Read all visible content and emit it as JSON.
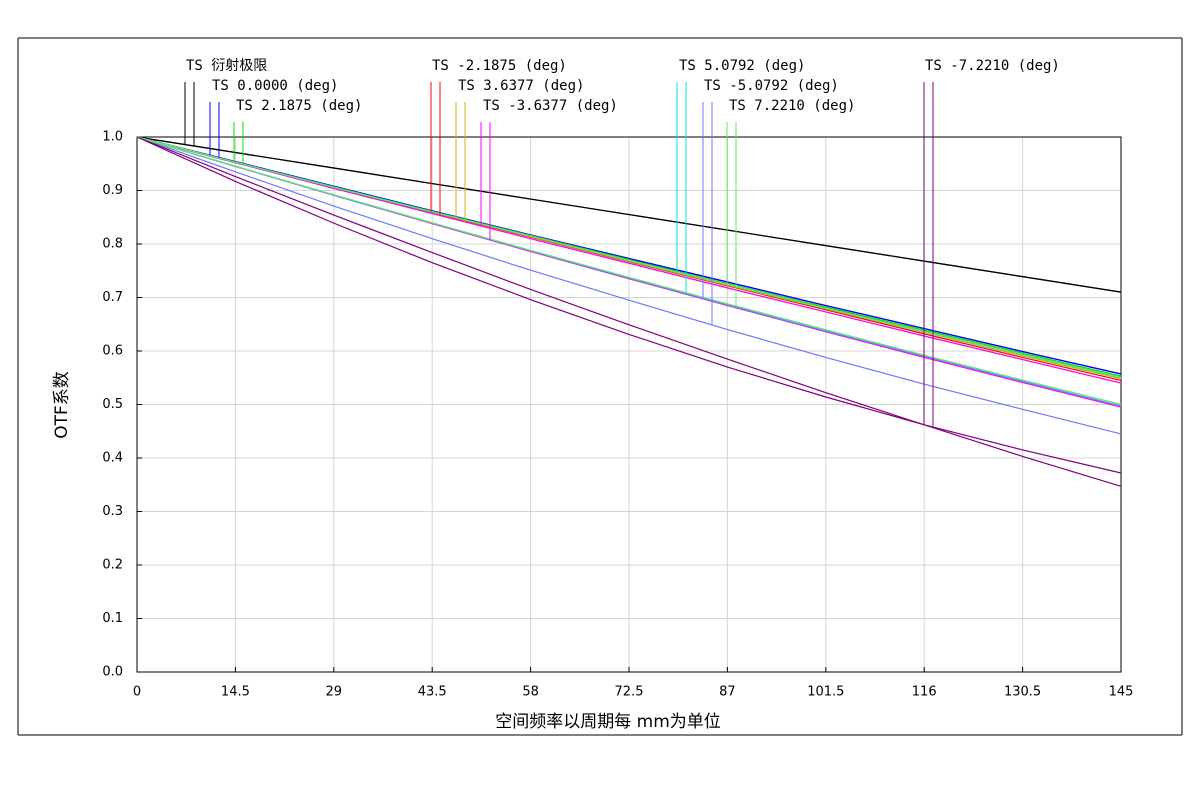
{
  "chart_data": {
    "type": "line",
    "x_label": "空间频率以周期每 mm为单位",
    "y_label": "OTF系数",
    "x": [
      0,
      14.5,
      29,
      43.5,
      58,
      72.5,
      87,
      101.5,
      116,
      130.5,
      145
    ],
    "xlim": [
      0,
      145
    ],
    "xticks": [
      0,
      14.5,
      29,
      43.5,
      58,
      72.5,
      87,
      101.5,
      116,
      130.5,
      145
    ],
    "ylim": [
      0,
      1
    ],
    "yticks": [
      {
        "value": 0,
        "label": "0.0"
      },
      0.1,
      0.2,
      0.3,
      0.4,
      0.5,
      0.6,
      0.7,
      0.8,
      0.9,
      {
        "value": 1,
        "label": "1.0"
      }
    ],
    "grid": true,
    "series": [
      {
        "name": "TS 衍射极限",
        "color": "#000000",
        "color_s": "#000000",
        "values": [
          1,
          0.971,
          0.942,
          0.913,
          0.884,
          0.855,
          0.826,
          0.797,
          0.768,
          0.739,
          0.71
        ],
        "values_s": [
          1,
          0.971,
          0.942,
          0.913,
          0.884,
          0.855,
          0.826,
          0.797,
          0.768,
          0.739,
          0.71
        ]
      },
      {
        "name": "TS 0.0000 (deg)",
        "color": "#0000ff",
        "color_s": "#0000ff",
        "values": [
          1,
          0.954,
          0.908,
          0.862,
          0.817,
          0.773,
          0.729,
          0.685,
          0.642,
          0.599,
          0.557
        ],
        "values_s": [
          1,
          0.954,
          0.908,
          0.862,
          0.817,
          0.773,
          0.729,
          0.685,
          0.642,
          0.599,
          0.557
        ]
      },
      {
        "name": "TS 2.1875 (deg)",
        "color": "#00e000",
        "color_s": "#00e000",
        "values": [
          1,
          0.953,
          0.907,
          0.861,
          0.816,
          0.771,
          0.726,
          0.682,
          0.639,
          0.596,
          0.553
        ],
        "values_s": [
          1,
          0.953,
          0.906,
          0.86,
          0.815,
          0.769,
          0.725,
          0.68,
          0.636,
          0.593,
          0.55
        ]
      },
      {
        "name": "TS -2.1875 (deg)",
        "color": "#ff0000",
        "color_s": "#ff0000",
        "values": [
          1,
          0.953,
          0.906,
          0.86,
          0.815,
          0.769,
          0.725,
          0.68,
          0.636,
          0.593,
          0.55
        ],
        "values_s": [
          1,
          0.952,
          0.905,
          0.859,
          0.813,
          0.767,
          0.722,
          0.677,
          0.632,
          0.588,
          0.545
        ]
      },
      {
        "name": "TS 3.6377 (deg)",
        "color": "#c8b400",
        "color_s": "#c8b400",
        "values": [
          1,
          0.953,
          0.906,
          0.86,
          0.814,
          0.768,
          0.723,
          0.679,
          0.635,
          0.591,
          0.548
        ],
        "values_s": [
          1,
          0.952,
          0.904,
          0.857,
          0.81,
          0.764,
          0.718,
          0.673,
          0.628,
          0.584,
          0.54
        ]
      },
      {
        "name": "TS -3.6377 (deg)",
        "color": "#ff00ff",
        "color_s": "#ff00ff",
        "values": [
          1,
          0.952,
          0.904,
          0.857,
          0.81,
          0.764,
          0.718,
          0.673,
          0.628,
          0.584,
          0.54
        ],
        "values_s": [
          1,
          0.945,
          0.891,
          0.838,
          0.786,
          0.735,
          0.685,
          0.636,
          0.588,
          0.541,
          0.495
        ]
      },
      {
        "name": "TS 5.0792 (deg)",
        "color": "#00e0e0",
        "color_s": "#00e0e0",
        "values": [
          1,
          0.953,
          0.906,
          0.86,
          0.815,
          0.769,
          0.725,
          0.68,
          0.636,
          0.593,
          0.55
        ],
        "values_s": [
          1,
          0.9455,
          0.892,
          0.8395,
          0.788,
          0.7375,
          0.688,
          0.6395,
          0.592,
          0.5455,
          0.5
        ]
      },
      {
        "name": "TS -5.0792 (deg)",
        "color": "#6e78ff",
        "color_s": "#6e78ff",
        "values": [
          1,
          0.945,
          0.891,
          0.839,
          0.787,
          0.736,
          0.686,
          0.637,
          0.59,
          0.543,
          0.497
        ],
        "values_s": [
          1,
          0.935,
          0.871,
          0.81,
          0.751,
          0.695,
          0.64,
          0.588,
          0.538,
          0.491,
          0.445
        ]
      },
      {
        "name": "TS 7.2210 (deg)",
        "color": "#64e664",
        "color_s": "#64e664",
        "values": [
          1,
          0.953,
          0.906,
          0.86,
          0.815,
          0.769,
          0.725,
          0.68,
          0.636,
          0.593,
          0.55
        ],
        "values_s": [
          1,
          0.9455,
          0.892,
          0.8395,
          0.788,
          0.7375,
          0.688,
          0.6395,
          0.592,
          0.5455,
          0.5
        ]
      },
      {
        "name": "TS -7.2210 (deg)",
        "color": "#800080",
        "color_s": "#800080",
        "values": [
          1,
          0.917,
          0.839,
          0.765,
          0.696,
          0.631,
          0.57,
          0.514,
          0.462,
          0.415,
          0.372
        ],
        "values_s": [
          1,
          0.926,
          0.854,
          0.784,
          0.715,
          0.649,
          0.585,
          0.522,
          0.462,
          0.403,
          0.347
        ]
      }
    ]
  }
}
